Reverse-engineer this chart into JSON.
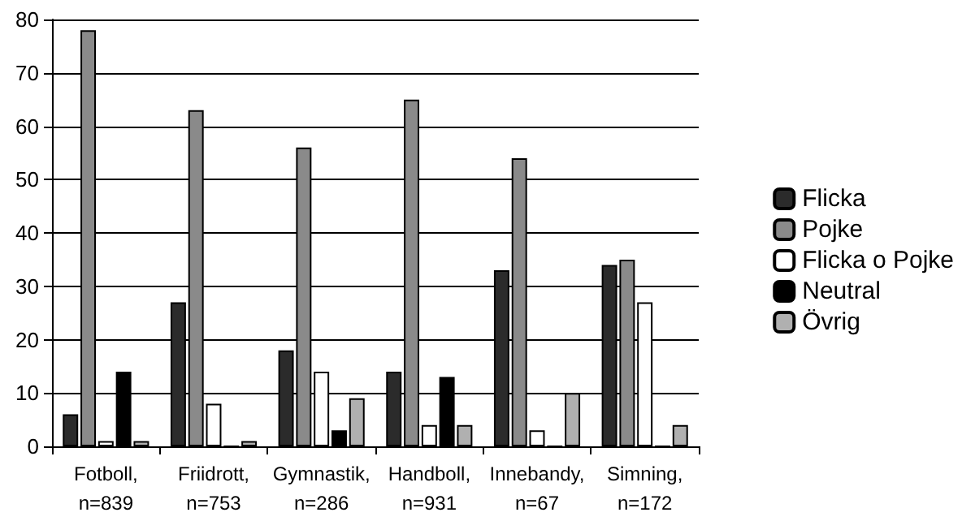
{
  "chart_data": {
    "type": "bar",
    "categories": [
      "Fotboll, n=839",
      "Friidrott, n=753",
      "Gymnastik, n=286",
      "Handboll, n=931",
      "Innebandy, n=67",
      "Simning, n=172"
    ],
    "series": [
      {
        "name": "Flicka",
        "color": "#2b2b2b",
        "values": [
          6,
          27,
          18,
          14,
          33,
          34
        ]
      },
      {
        "name": "Pojke",
        "color": "#8a8a8a",
        "values": [
          78,
          63,
          56,
          65,
          54,
          35
        ]
      },
      {
        "name": "Flicka o Pojke",
        "color": "#ffffff",
        "values": [
          1,
          8,
          14,
          4,
          3,
          27
        ]
      },
      {
        "name": "Neutral",
        "color": "#000000",
        "values": [
          14,
          0,
          3,
          13,
          0,
          0
        ]
      },
      {
        "name": "Övrig",
        "color": "#b0b0b0",
        "values": [
          1,
          1,
          9,
          4,
          10,
          4
        ]
      }
    ],
    "ylim": [
      0,
      80
    ],
    "yticks": [
      0,
      10,
      20,
      30,
      40,
      50,
      60,
      70,
      80
    ],
    "grid": "y",
    "legend": "right"
  }
}
